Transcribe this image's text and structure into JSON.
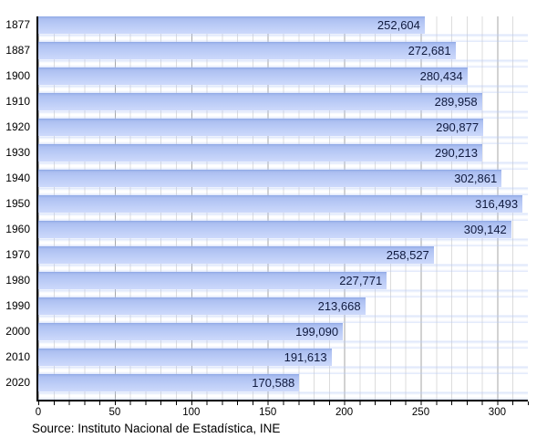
{
  "chart_data": {
    "type": "bar",
    "orientation": "horizontal",
    "title": "",
    "xlabel": "",
    "ylabel": "",
    "categories": [
      "1877",
      "1887",
      "1900",
      "1910",
      "1920",
      "1930",
      "1940",
      "1950",
      "1960",
      "1970",
      "1980",
      "1990",
      "2000",
      "2010",
      "2020"
    ],
    "values": [
      252604,
      272681,
      280434,
      289958,
      290877,
      290213,
      302861,
      316493,
      309142,
      258527,
      227771,
      213668,
      199090,
      191613,
      170588
    ],
    "value_labels": [
      "252,604",
      "272,681",
      "280,434",
      "289,958",
      "290,877",
      "290,213",
      "302,861",
      "316,493",
      "309,142",
      "258,527",
      "227,771",
      "213,668",
      "199,090",
      "191,613",
      "170,588"
    ],
    "x_ticks": [
      0,
      50,
      100,
      150,
      200,
      250,
      300
    ],
    "x_minor_step": 10,
    "xlim": [
      0,
      320
    ],
    "x_unit": "thousands",
    "grid": "vertical, minor every 10 / major every 50",
    "legend": "none",
    "source": "Source: Instituto Nacional de Estadística, INE",
    "colors": {
      "bar": "#b7c8f5",
      "bar_top_edge": "#93abe7",
      "bar_bottom": "#cdd9fb",
      "value_text": "#101a3e",
      "grid_minor": "#dcdcdc",
      "grid_major": "#a6a6a6",
      "axis": "#000000",
      "background": "#ffffff"
    }
  }
}
